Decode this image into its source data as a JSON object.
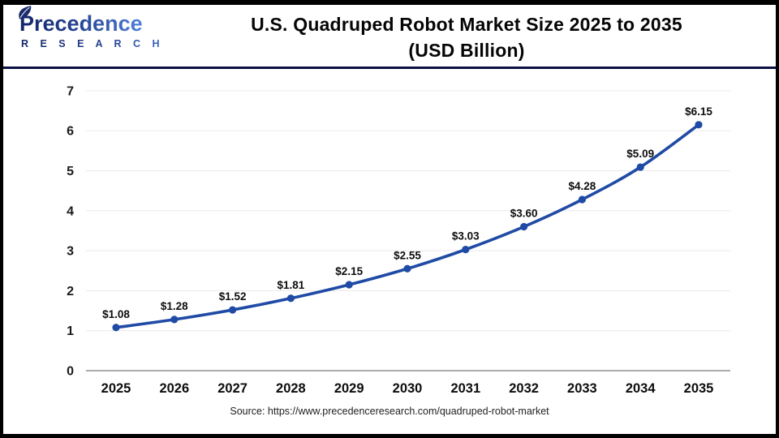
{
  "header": {
    "logo": {
      "brand": "Precedence",
      "sub": "R E S E A R C H"
    },
    "title_line1": "U.S. Quadruped Robot Market Size 2025 to 2035",
    "title_line2": "(USD Billion)"
  },
  "chart_data": {
    "type": "line",
    "title": "U.S. Quadruped Robot Market Size 2025 to 2035 (USD Billion)",
    "categories": [
      "2025",
      "2026",
      "2027",
      "2028",
      "2029",
      "2030",
      "2031",
      "2032",
      "2033",
      "2034",
      "2035"
    ],
    "values": [
      1.08,
      1.28,
      1.52,
      1.81,
      2.15,
      2.55,
      3.03,
      3.6,
      4.28,
      5.09,
      6.15
    ],
    "point_labels": [
      "$1.08",
      "$1.28",
      "$1.52",
      "$1.81",
      "$2.15",
      "$2.55",
      "$3.03",
      "$3.60",
      "$4.28",
      "$5.09",
      "$6.15"
    ],
    "xlabel": "",
    "ylabel": "",
    "ylim": [
      0,
      7
    ],
    "yticks": [
      0,
      1,
      2,
      3,
      4,
      5,
      6,
      7
    ],
    "grid": true,
    "legend_position": "none",
    "colors": {
      "line": "#1f4aa5",
      "marker": "#1f4aa5",
      "grid": "#e9e9e9",
      "axis": "#ababab",
      "tick_text": "#1a1a1a",
      "label_text": "#0d0d0d"
    }
  },
  "footer": {
    "source": "Source: https://www.precedenceresearch.com/quadruped-robot-market"
  }
}
